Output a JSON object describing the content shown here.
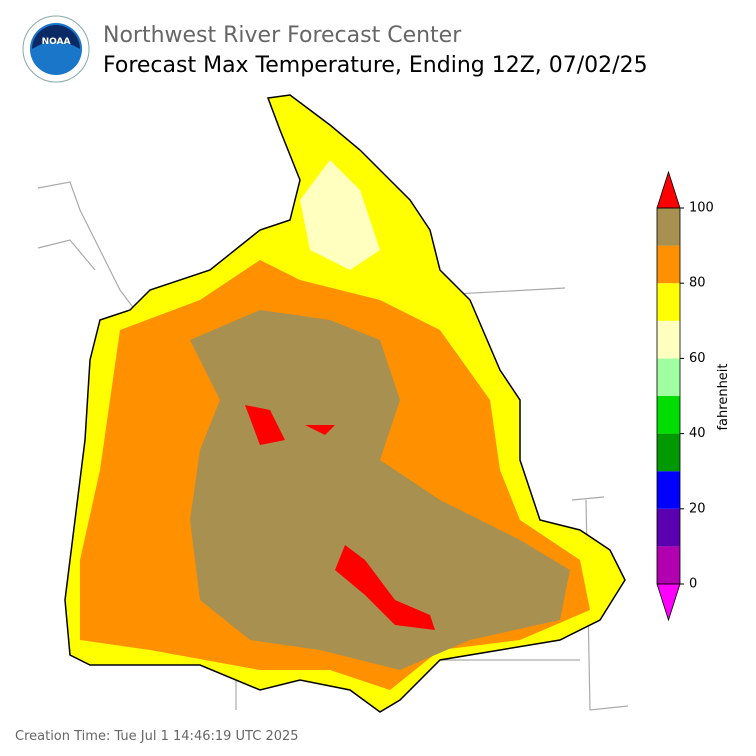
{
  "header": {
    "agency": "Northwest River Forecast Center",
    "title": "Forecast Max Temperature, Ending 12Z, 07/02/25"
  },
  "logo": {
    "text": "NOAA"
  },
  "colorbar": {
    "label": "fahrenheit",
    "lim": [
      0,
      100
    ],
    "ticks": [
      0,
      20,
      40,
      60,
      80,
      100
    ],
    "bounds": [
      0,
      10,
      20,
      30,
      40,
      50,
      60,
      70,
      80,
      90,
      100
    ],
    "colors": [
      "#b000b0",
      "#5a00b0",
      "#0000ff",
      "#009900",
      "#00dd00",
      "#a0ffa0",
      "#ffffc0",
      "#ffff00",
      "#ff9000",
      "#a89050"
    ],
    "under_color": "#ff00ff",
    "over_color": "#ff0000"
  },
  "footer": {
    "creation_time": "Creation Time: Tue Jul 1 14:46:19 UTC 2025"
  }
}
